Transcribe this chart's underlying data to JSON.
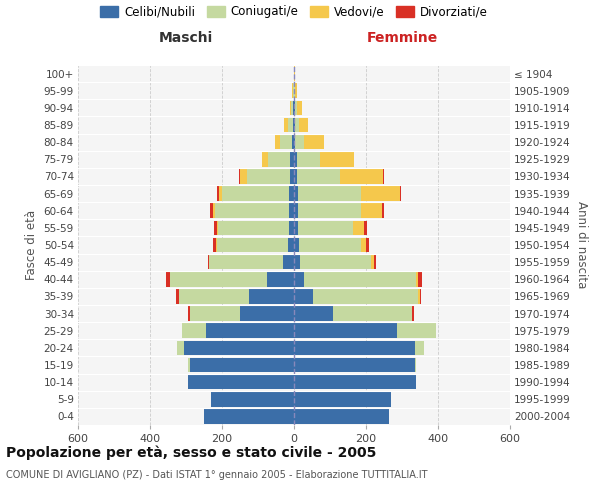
{
  "age_groups": [
    "0-4",
    "5-9",
    "10-14",
    "15-19",
    "20-24",
    "25-29",
    "30-34",
    "35-39",
    "40-44",
    "45-49",
    "50-54",
    "55-59",
    "60-64",
    "65-69",
    "70-74",
    "75-79",
    "80-84",
    "85-89",
    "90-94",
    "95-99",
    "100+"
  ],
  "birth_years": [
    "2000-2004",
    "1995-1999",
    "1990-1994",
    "1985-1989",
    "1980-1984",
    "1975-1979",
    "1970-1974",
    "1965-1969",
    "1960-1964",
    "1955-1959",
    "1950-1954",
    "1945-1949",
    "1940-1944",
    "1935-1939",
    "1930-1934",
    "1925-1929",
    "1920-1924",
    "1915-1919",
    "1910-1914",
    "1905-1909",
    "≤ 1904"
  ],
  "male": {
    "celibi": [
      250,
      230,
      295,
      290,
      305,
      245,
      150,
      125,
      75,
      30,
      18,
      15,
      15,
      15,
      12,
      10,
      5,
      4,
      2,
      1,
      0
    ],
    "coniugati": [
      0,
      0,
      0,
      5,
      20,
      65,
      140,
      195,
      270,
      205,
      195,
      195,
      205,
      185,
      118,
      62,
      35,
      14,
      5,
      2,
      0
    ],
    "vedovi": [
      0,
      0,
      0,
      0,
      0,
      0,
      0,
      0,
      0,
      0,
      5,
      5,
      5,
      8,
      20,
      18,
      14,
      10,
      5,
      2,
      1
    ],
    "divorziati": [
      0,
      0,
      0,
      0,
      0,
      0,
      5,
      8,
      10,
      5,
      8,
      8,
      8,
      5,
      2,
      0,
      0,
      0,
      0,
      0,
      0
    ]
  },
  "female": {
    "nubili": [
      265,
      270,
      340,
      335,
      335,
      285,
      108,
      52,
      28,
      18,
      14,
      10,
      10,
      10,
      8,
      8,
      4,
      3,
      2,
      1,
      0
    ],
    "coniugate": [
      0,
      0,
      0,
      5,
      25,
      110,
      220,
      292,
      312,
      195,
      172,
      155,
      175,
      175,
      120,
      65,
      25,
      10,
      5,
      2,
      0
    ],
    "vedove": [
      0,
      0,
      0,
      0,
      0,
      0,
      0,
      5,
      5,
      8,
      15,
      30,
      60,
      110,
      120,
      95,
      55,
      25,
      15,
      5,
      2
    ],
    "divorziate": [
      0,
      0,
      0,
      0,
      0,
      0,
      5,
      5,
      10,
      8,
      8,
      8,
      5,
      2,
      2,
      0,
      0,
      0,
      0,
      0,
      0
    ]
  },
  "colors": {
    "celibi": "#3b6ea8",
    "coniugati": "#c5d9a0",
    "vedovi": "#f5c84c",
    "divorziati": "#d93025"
  },
  "xlim": 600,
  "title": "Popolazione per età, sesso e stato civile - 2005",
  "subtitle": "COMUNE DI AVIGLIANO (PZ) - Dati ISTAT 1° gennaio 2005 - Elaborazione TUTTITALIA.IT",
  "ylabel_left": "Fasce di età",
  "ylabel_right": "Anni di nascita",
  "xlabel_left": "Maschi",
  "xlabel_right": "Femmine",
  "bg_color": "#ffffff",
  "grid_color": "#cccccc",
  "legend_labels": [
    "Celibi/Nubili",
    "Coniugati/e",
    "Vedovi/e",
    "Divorziati/e"
  ]
}
